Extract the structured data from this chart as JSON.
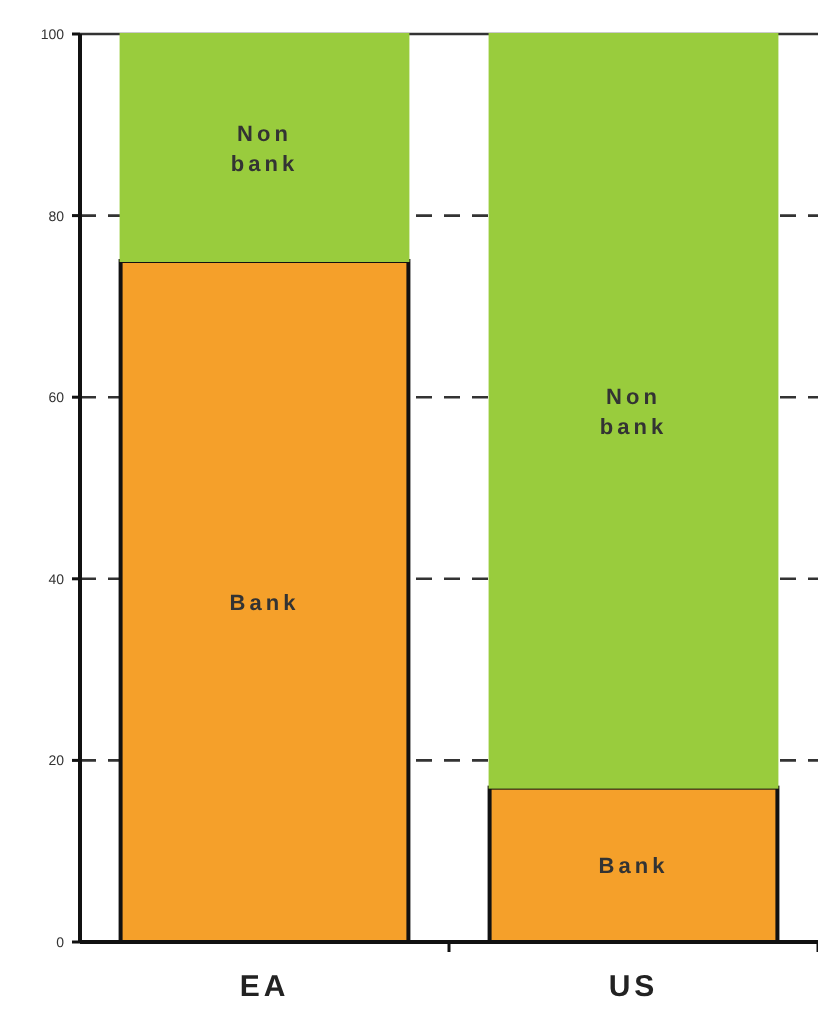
{
  "chart_data": {
    "type": "bar",
    "stacked": true,
    "categories": [
      "EA",
      "US"
    ],
    "series": [
      {
        "name": "Bank",
        "color": "#f5a02a",
        "values": [
          75,
          17
        ]
      },
      {
        "name": "Non bank",
        "color": "#99cc3d",
        "values": [
          25,
          83
        ]
      }
    ],
    "ylim": [
      0,
      100
    ],
    "yticks": [
      0,
      20,
      40,
      60,
      80,
      100
    ],
    "grid": "y"
  }
}
